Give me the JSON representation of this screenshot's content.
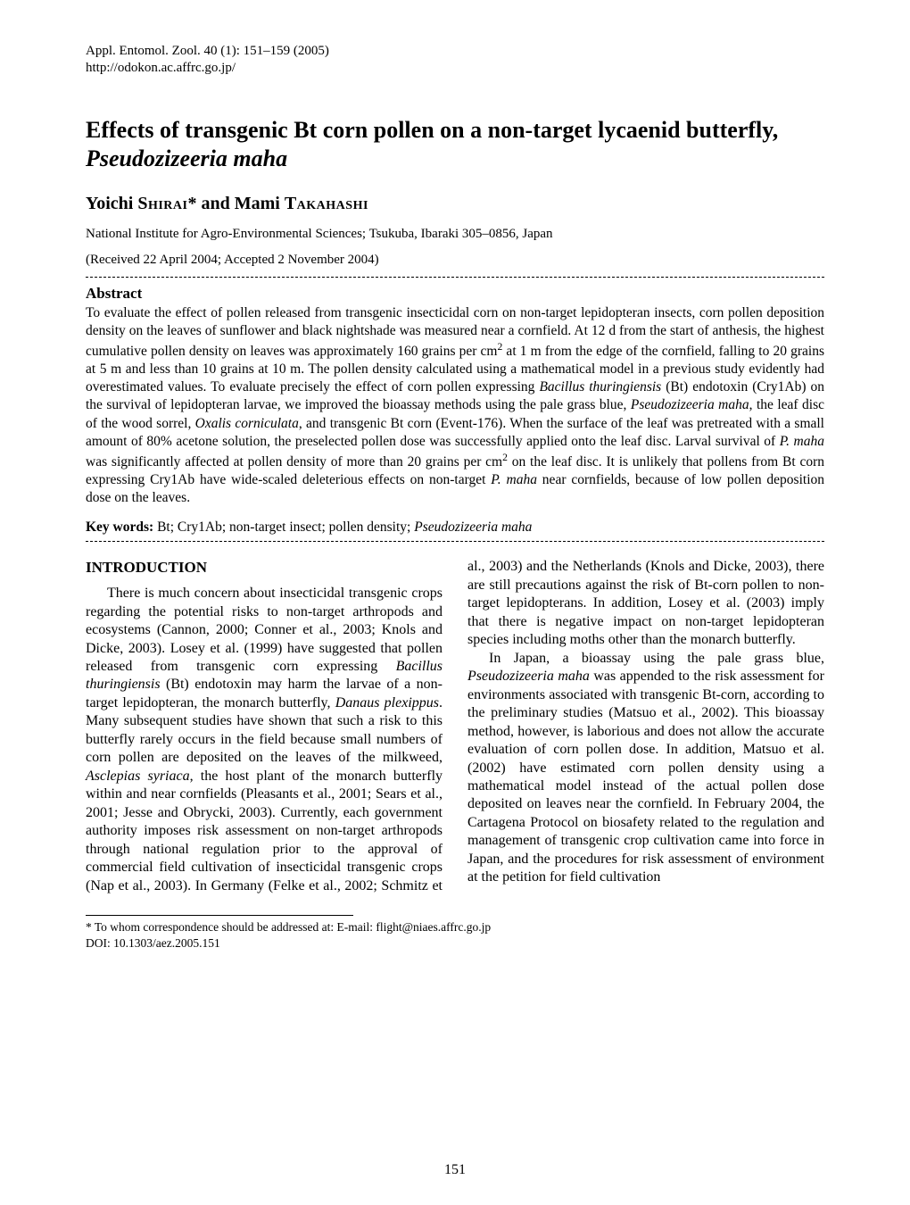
{
  "header": {
    "journal_line": "Appl. Entomol. Zool. 40 (1): 151–159 (2005)",
    "url": "http://odokon.ac.affrc.go.jp/"
  },
  "title": {
    "plain": "Effects of transgenic Bt corn pollen on a non-target lycaenid butterfly, ",
    "italic": "Pseudozizeeria maha"
  },
  "authors": {
    "a1_given": "Yoichi ",
    "a1_surname": "Shirai",
    "a1_marker": "*",
    "joiner": " and ",
    "a2_given": "Mami ",
    "a2_surname": "Takahashi"
  },
  "affiliation": "National Institute for Agro-Environmental Sciences; Tsukuba, Ibaraki 305–0856, Japan",
  "received": "(Received 22 April 2004; Accepted 2 November 2004)",
  "abstract": {
    "heading": "Abstract",
    "t1": "To evaluate the effect of pollen released from transgenic insecticidal corn on non-target lepidopteran insects, corn pollen deposition density on the leaves of sunflower and black nightshade was measured near a cornfield. At 12 d from the start of anthesis, the highest cumulative pollen density on leaves was approximately 160 grains per cm",
    "t1_sup": "2",
    "t2": " at 1 m from the edge of the cornfield, falling to 20 grains at 5 m and less than 10 grains at 10 m. The pollen density calculated using a mathematical model in a previous study evidently had overestimated values. To evaluate precisely the effect of corn pollen expressing ",
    "i1": "Bacillus thuringiensis",
    "t3": " (Bt) endotoxin (Cry1Ab) on the survival of lepidopteran larvae, we improved the bioassay methods using the pale grass blue, ",
    "i2": "Pseudozizeeria maha",
    "t4": ", the leaf disc of the wood sorrel, ",
    "i3": "Oxalis corniculata",
    "t5": ", and transgenic Bt corn (Event-176). When the surface of the leaf was pretreated with a small amount of 80% acetone solution, the preselected pollen dose was successfully applied onto the leaf disc. Larval survival of ",
    "i4": "P. maha",
    "t6": " was significantly affected at pollen density of more than 20 grains per cm",
    "t6_sup": "2",
    "t7": " on the leaf disc. It is unlikely that pollens from Bt corn expressing Cry1Ab have wide-scaled deleterious effects on non-target ",
    "i5": "P. maha",
    "t8": " near cornfields, because of low pollen deposition dose on the leaves."
  },
  "keywords": {
    "label": "Key words:",
    "t1": " Bt; Cry1Ab; non-target insect; pollen density; ",
    "i1": "Pseudozizeeria maha"
  },
  "intro": {
    "heading": "INTRODUCTION",
    "p1": {
      "t1": "There is much concern about insecticidal transgenic crops regarding the potential risks to non-target arthropods and ecosystems (Cannon, 2000; Conner et al., 2003; Knols and Dicke, 2003). Losey et al. (1999) have suggested that pollen released from transgenic corn expressing ",
      "i1": "Bacillus thuringiensis",
      "t2": " (Bt) endotoxin may harm the larvae of a non-target lepidopteran, the monarch butterfly, ",
      "i2": "Danaus plexippus",
      "t3": ". Many subsequent studies have shown that such a risk to this butterfly rarely occurs in the field because small numbers of corn pollen are deposited on the leaves of the milkweed, ",
      "i3": "Asclepias syriaca",
      "t4": ", the host plant of the monarch butterfly within and near cornfields (Pleasants et al., 2001; Sears et al., 2001; Jesse and Obrycki, 2003). Currently, each government authority imposes risk assessment on non-target arthropods through national regulation prior to the approval of commercial field cultivation of insecticidal transgenic crops (Nap et al., 2003). In Germany (Felke et al., 2002; Schmitz et al., 2003) and the Netherlands (Knols and Dicke, 2003), there are still precautions against the risk of Bt-corn pollen to non-target lepidopterans. In addition, Losey et al. (2003) imply that there is negative impact on non-target lepidopteran species including moths other than the monarch butterfly."
    },
    "p2": {
      "t1": "In Japan, a bioassay using the pale grass blue, ",
      "i1": "Pseudozizeeria maha",
      "t2": " was appended to the risk assessment for environments associated with transgenic Bt-corn, according to the preliminary studies (Matsuo et al., 2002). This bioassay method, however, is laborious and does not allow the accurate evaluation of corn pollen dose. In addition, Matsuo et al. (2002) have estimated corn pollen density using a mathematical model instead of the actual pollen dose deposited on leaves near the cornfield. In February 2004, the Cartagena Protocol on biosafety related to the regulation and management of transgenic crop cultivation came into force in Japan, and the procedures for risk assessment of environment at the petition for field cultivation"
    }
  },
  "footnote": {
    "corr": "* To whom correspondence should be addressed at: E-mail: flight@niaes.affrc.go.jp",
    "doi": "DOI: 10.1303/aez.2005.151"
  },
  "page_number": "151"
}
